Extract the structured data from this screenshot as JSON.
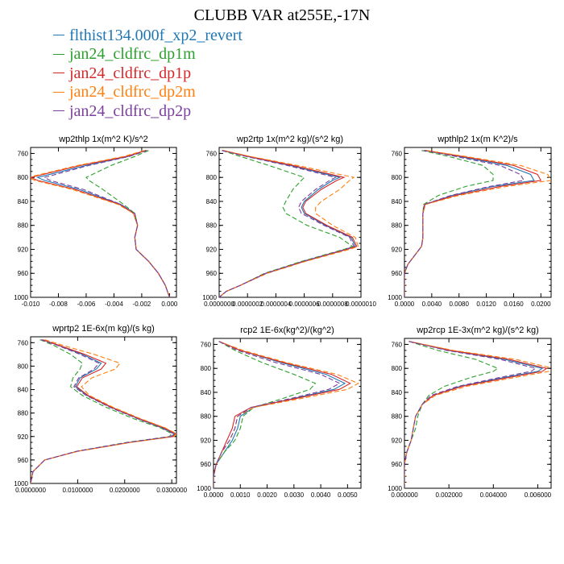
{
  "title": "CLUBB VAR at255E,-17N",
  "legend": [
    {
      "label": "flthist134.000f_xp2_revert",
      "color": "#1f77b4"
    },
    {
      "label": "jan24_cldfrc_dp1m",
      "color": "#2ca02c"
    },
    {
      "label": "jan24_cldfrc_dp1p",
      "color": "#d62728"
    },
    {
      "label": "jan24_cldfrc_dp2m",
      "color": "#ff7f0e"
    },
    {
      "label": "jan24_cldfrc_dp2p",
      "color": "#7b3f9e"
    }
  ],
  "chart_data": [
    {
      "type": "line",
      "title": "wp2thlp  1x(m^2 K)/s^2",
      "ylim": [
        1000,
        750
      ],
      "yticks": [
        "760",
        "800",
        "840",
        "880",
        "920",
        "960",
        "1000"
      ],
      "xlim": [
        -0.01,
        0.0005
      ],
      "xticks": [
        {
          "v": -0.01,
          "label": "-0.010"
        },
        {
          "v": -0.008,
          "label": "-0.008"
        },
        {
          "v": -0.006,
          "label": "-0.006"
        },
        {
          "v": -0.004,
          "label": "-0.004"
        },
        {
          "v": -0.002,
          "label": "-0.002"
        },
        {
          "v": 0.0,
          "label": "0.000"
        }
      ],
      "y": [
        755,
        765,
        780,
        800,
        805,
        820,
        845,
        860,
        880,
        900,
        920,
        940,
        960,
        980,
        1000
      ],
      "series": [
        {
          "values": [
            -0.0017,
            -0.003,
            -0.006,
            -0.0095,
            -0.009,
            -0.0065,
            -0.0035,
            -0.0025,
            -0.0023,
            -0.0025,
            -0.0024,
            -0.0015,
            -0.0008,
            -0.0003,
            0.0
          ]
        },
        {
          "values": [
            -0.0015,
            -0.0025,
            -0.0042,
            -0.006,
            -0.0058,
            -0.0048,
            -0.0033,
            -0.0025,
            -0.0023,
            -0.0025,
            -0.0024,
            -0.0015,
            -0.0008,
            -0.0003,
            0.0
          ]
        },
        {
          "values": [
            -0.0017,
            -0.0031,
            -0.0064,
            -0.01,
            -0.0095,
            -0.0068,
            -0.0036,
            -0.0026,
            -0.0023,
            -0.0025,
            -0.0024,
            -0.0015,
            -0.0008,
            -0.0003,
            0.0
          ]
        },
        {
          "values": [
            -0.0018,
            -0.0033,
            -0.0066,
            -0.0102,
            -0.0097,
            -0.007,
            -0.0037,
            -0.0026,
            -0.0023,
            -0.0025,
            -0.0024,
            -0.0015,
            -0.0008,
            -0.0003,
            0.0
          ]
        },
        {
          "values": [
            -0.0016,
            -0.0029,
            -0.0058,
            -0.009,
            -0.0086,
            -0.0062,
            -0.0035,
            -0.0025,
            -0.0023,
            -0.0025,
            -0.0024,
            -0.0015,
            -0.0008,
            -0.0003,
            0.0
          ]
        }
      ]
    },
    {
      "type": "line",
      "title": "wp2rtp  1x(m^2 kg)/(s^2 kg)",
      "ylim": [
        1000,
        750
      ],
      "yticks": [
        "760",
        "800",
        "840",
        "880",
        "920",
        "960",
        "1000"
      ],
      "xlim": [
        0.0,
        1e-06
      ],
      "xticks": [
        {
          "v": 0.0,
          "label": "0.0000000"
        },
        {
          "v": 2e-07,
          "label": "0.0000002"
        },
        {
          "v": 4e-07,
          "label": "0.0000004"
        },
        {
          "v": 6e-07,
          "label": "0.0000006"
        },
        {
          "v": 8e-07,
          "label": "0.0000008"
        },
        {
          "v": 1e-06,
          "label": "0.0000010"
        }
      ],
      "y": [
        755,
        765,
        780,
        800,
        805,
        820,
        840,
        850,
        860,
        880,
        900,
        915,
        920,
        940,
        960,
        980,
        990,
        1000
      ],
      "series": [
        {
          "values": [
            2e-08,
            2e-07,
            5e-07,
            8.5e-07,
            8e-07,
            7e-07,
            6e-07,
            5.8e-07,
            6e-07,
            7.5e-07,
            9.3e-07,
            9.6e-07,
            9e-07,
            6e-07,
            3.3e-07,
            1.5e-07,
            5e-08,
            0.0
          ]
        },
        {
          "values": [
            2e-08,
            1.5e-07,
            3.5e-07,
            6e-07,
            5.8e-07,
            5.2e-07,
            4.7e-07,
            4.5e-07,
            4.7e-07,
            6.2e-07,
            8.5e-07,
            9.4e-07,
            8.8e-07,
            5.8e-07,
            3.2e-07,
            1.5e-07,
            5e-08,
            0.0
          ]
        },
        {
          "values": [
            2e-08,
            2.1e-07,
            5.2e-07,
            8.8e-07,
            8.3e-07,
            7.2e-07,
            6.1e-07,
            5.9e-07,
            6.1e-07,
            7.6e-07,
            9.4e-07,
            9.7e-07,
            9e-07,
            6e-07,
            3.3e-07,
            1.5e-07,
            5e-08,
            0.0
          ]
        },
        {
          "values": [
            3e-08,
            2.2e-07,
            5.5e-07,
            9.5e-07,
            9.2e-07,
            8.5e-07,
            7.2e-07,
            6.8e-07,
            6.8e-07,
            8e-07,
            9.6e-07,
            9.8e-07,
            9.2e-07,
            6.1e-07,
            3.4e-07,
            1.5e-07,
            5e-08,
            0.0
          ]
        },
        {
          "values": [
            2e-08,
            1.9e-07,
            4.8e-07,
            8.2e-07,
            7.8e-07,
            6.8e-07,
            5.8e-07,
            5.6e-07,
            5.8e-07,
            7.4e-07,
            9.2e-07,
            9.5e-07,
            8.9e-07,
            5.9e-07,
            3.3e-07,
            1.5e-07,
            5e-08,
            0.0
          ]
        }
      ]
    },
    {
      "type": "line",
      "title": "wpthlp2  1x(m K^2)/s",
      "ylim": [
        1000,
        750
      ],
      "yticks": [
        "760",
        "800",
        "840",
        "880",
        "920",
        "960",
        "1000"
      ],
      "xlim": [
        0.0,
        0.0215
      ],
      "xticks": [
        {
          "v": 0.0,
          "label": "0.0000"
        },
        {
          "v": 0.004,
          "label": "0.0040"
        },
        {
          "v": 0.008,
          "label": "0.0080"
        },
        {
          "v": 0.012,
          "label": "0.0120"
        },
        {
          "v": 0.016,
          "label": "0.0160"
        },
        {
          "v": 0.02,
          "label": "0.0200"
        }
      ],
      "y": [
        755,
        765,
        780,
        795,
        805,
        815,
        830,
        845,
        860,
        880,
        900,
        915,
        930,
        945,
        960,
        980,
        1000
      ],
      "series": [
        {
          "values": [
            0.003,
            0.008,
            0.015,
            0.0185,
            0.019,
            0.013,
            0.007,
            0.003,
            0.0027,
            0.0027,
            0.0027,
            0.0025,
            0.0015,
            0.0005,
            0.0,
            0.0,
            0.0
          ]
        },
        {
          "values": [
            0.0025,
            0.0065,
            0.0115,
            0.013,
            0.013,
            0.009,
            0.005,
            0.0028,
            0.0027,
            0.0027,
            0.0027,
            0.0025,
            0.0015,
            0.0005,
            0.0,
            0.0,
            0.0
          ]
        },
        {
          "values": [
            0.003,
            0.0085,
            0.016,
            0.0195,
            0.02,
            0.014,
            0.0075,
            0.003,
            0.0027,
            0.0027,
            0.0027,
            0.0025,
            0.0015,
            0.0005,
            0.0,
            0.0,
            0.0
          ]
        },
        {
          "values": [
            0.0032,
            0.009,
            0.017,
            0.021,
            0.0215,
            0.015,
            0.008,
            0.0031,
            0.0027,
            0.0027,
            0.0027,
            0.0025,
            0.0015,
            0.0005,
            0.0,
            0.0,
            0.0
          ]
        },
        {
          "values": [
            0.0028,
            0.0075,
            0.014,
            0.017,
            0.0175,
            0.0125,
            0.0068,
            0.0029,
            0.0027,
            0.0027,
            0.0027,
            0.0025,
            0.0015,
            0.0005,
            0.0,
            0.0,
            0.0
          ]
        }
      ]
    },
    {
      "type": "line",
      "title": "wprtp2  1E-6x(m kg)/(s kg)",
      "ylim": [
        1000,
        750
      ],
      "yticks": [
        "760",
        "800",
        "840",
        "880",
        "920",
        "960",
        "1000"
      ],
      "xlim": [
        0.0,
        0.031
      ],
      "xticks": [
        {
          "v": 0.0,
          "label": "0.0000000"
        },
        {
          "v": 0.01,
          "label": "0.0100000"
        },
        {
          "v": 0.02,
          "label": "0.0200000"
        },
        {
          "v": 0.03,
          "label": "0.0300000"
        }
      ],
      "y": [
        755,
        765,
        780,
        795,
        805,
        820,
        835,
        850,
        870,
        890,
        905,
        915,
        920,
        930,
        945,
        960,
        980,
        1000
      ],
      "series": [
        {
          "values": [
            0.0025,
            0.006,
            0.011,
            0.015,
            0.014,
            0.0105,
            0.0095,
            0.012,
            0.017,
            0.023,
            0.028,
            0.0305,
            0.03,
            0.021,
            0.01,
            0.003,
            0.0005,
            0.0
          ]
        },
        {
          "values": [
            0.002,
            0.005,
            0.0085,
            0.011,
            0.0105,
            0.009,
            0.0085,
            0.011,
            0.016,
            0.022,
            0.0275,
            0.03,
            0.0295,
            0.0205,
            0.0098,
            0.003,
            0.0005,
            0.0
          ]
        },
        {
          "values": [
            0.0025,
            0.0062,
            0.0115,
            0.016,
            0.015,
            0.011,
            0.0098,
            0.0122,
            0.0172,
            0.0232,
            0.0283,
            0.0308,
            0.0302,
            0.0212,
            0.01,
            0.003,
            0.0005,
            0.0
          ]
        },
        {
          "values": [
            0.003,
            0.007,
            0.0135,
            0.019,
            0.018,
            0.013,
            0.0108,
            0.0125,
            0.0175,
            0.0235,
            0.0285,
            0.031,
            0.0305,
            0.0215,
            0.0102,
            0.003,
            0.0005,
            0.0
          ]
        },
        {
          "values": [
            0.0022,
            0.0058,
            0.0105,
            0.0145,
            0.0135,
            0.0102,
            0.0092,
            0.0118,
            0.0168,
            0.0228,
            0.0278,
            0.0303,
            0.0298,
            0.0208,
            0.0099,
            0.003,
            0.0005,
            0.0
          ]
        }
      ]
    },
    {
      "type": "line",
      "title": "rcp2  1E-6x(kg^2)/(kg^2)",
      "ylim": [
        1000,
        750
      ],
      "yticks": [
        "760",
        "800",
        "840",
        "880",
        "920",
        "960",
        "1000"
      ],
      "xlim": [
        0.0,
        0.0055
      ],
      "xticks": [
        {
          "v": 0.0,
          "label": "0.0000"
        },
        {
          "v": 0.001,
          "label": "0.0010"
        },
        {
          "v": 0.002,
          "label": "0.0020"
        },
        {
          "v": 0.003,
          "label": "0.0030"
        },
        {
          "v": 0.004,
          "label": "0.0040"
        },
        {
          "v": 0.005,
          "label": "0.0050"
        }
      ],
      "y": [
        755,
        770,
        790,
        810,
        825,
        835,
        850,
        865,
        880,
        900,
        920,
        940,
        960,
        980,
        1000
      ],
      "series": [
        {
          "values": [
            0.0002,
            0.001,
            0.0025,
            0.0042,
            0.0049,
            0.0045,
            0.003,
            0.0015,
            0.001,
            0.0009,
            0.0007,
            0.0004,
            0.0001,
            0.0,
            0.0
          ]
        },
        {
          "values": [
            0.0002,
            0.0008,
            0.0018,
            0.003,
            0.0038,
            0.0036,
            0.0026,
            0.0015,
            0.0011,
            0.001,
            0.0008,
            0.0004,
            0.0001,
            0.0,
            0.0
          ]
        },
        {
          "values": [
            0.0002,
            0.001,
            0.0026,
            0.0044,
            0.0051,
            0.0047,
            0.0031,
            0.0014,
            0.0008,
            0.0007,
            0.0005,
            0.0003,
            0.0001,
            0.0,
            0.0
          ]
        },
        {
          "values": [
            0.0002,
            0.0011,
            0.0027,
            0.0046,
            0.0054,
            0.005,
            0.0033,
            0.0015,
            0.0009,
            0.0008,
            0.0006,
            0.0003,
            0.0001,
            0.0,
            0.0
          ]
        },
        {
          "values": [
            0.0002,
            0.0009,
            0.0023,
            0.004,
            0.0047,
            0.0043,
            0.0029,
            0.0014,
            0.0009,
            0.0008,
            0.0006,
            0.0003,
            0.0001,
            0.0,
            0.0
          ]
        }
      ]
    },
    {
      "type": "line",
      "title": "wp2rcp  1E-3x(m^2 kg)/(s^2 kg)",
      "ylim": [
        1000,
        750
      ],
      "yticks": [
        "760",
        "800",
        "840",
        "880",
        "920",
        "960",
        "1000"
      ],
      "xlim": [
        0.0,
        0.0066
      ],
      "xticks": [
        {
          "v": 0.0,
          "label": "0.000000"
        },
        {
          "v": 0.002,
          "label": "0.002000"
        },
        {
          "v": 0.004,
          "label": "0.004000"
        },
        {
          "v": 0.006,
          "label": "0.006000"
        }
      ],
      "y": [
        755,
        770,
        785,
        800,
        805,
        815,
        830,
        845,
        860,
        880,
        900,
        920,
        940,
        960,
        980,
        1000
      ],
      "series": [
        {
          "values": [
            0.0002,
            0.002,
            0.0045,
            0.0062,
            0.006,
            0.0045,
            0.0025,
            0.0013,
            0.0008,
            0.0005,
            0.0004,
            0.0003,
            0.0001,
            0.0,
            0.0,
            0.0
          ]
        },
        {
          "values": [
            0.0002,
            0.0015,
            0.0032,
            0.0042,
            0.004,
            0.003,
            0.0018,
            0.0011,
            0.0008,
            0.0006,
            0.0005,
            0.0003,
            0.0001,
            0.0,
            0.0,
            0.0
          ]
        },
        {
          "values": [
            0.0002,
            0.0021,
            0.0047,
            0.0064,
            0.0062,
            0.0047,
            0.0026,
            0.0013,
            0.0008,
            0.0005,
            0.0004,
            0.0003,
            0.0001,
            0.0,
            0.0,
            0.0
          ]
        },
        {
          "values": [
            0.0002,
            0.0022,
            0.005,
            0.0067,
            0.0065,
            0.005,
            0.0028,
            0.0014,
            0.0008,
            0.0005,
            0.0004,
            0.0003,
            0.0001,
            0.0,
            0.0,
            0.0
          ]
        },
        {
          "values": [
            0.0002,
            0.0019,
            0.0043,
            0.0059,
            0.0057,
            0.0043,
            0.0024,
            0.0012,
            0.0008,
            0.0005,
            0.0004,
            0.0003,
            0.0001,
            0.0,
            0.0,
            0.0
          ]
        }
      ]
    }
  ]
}
